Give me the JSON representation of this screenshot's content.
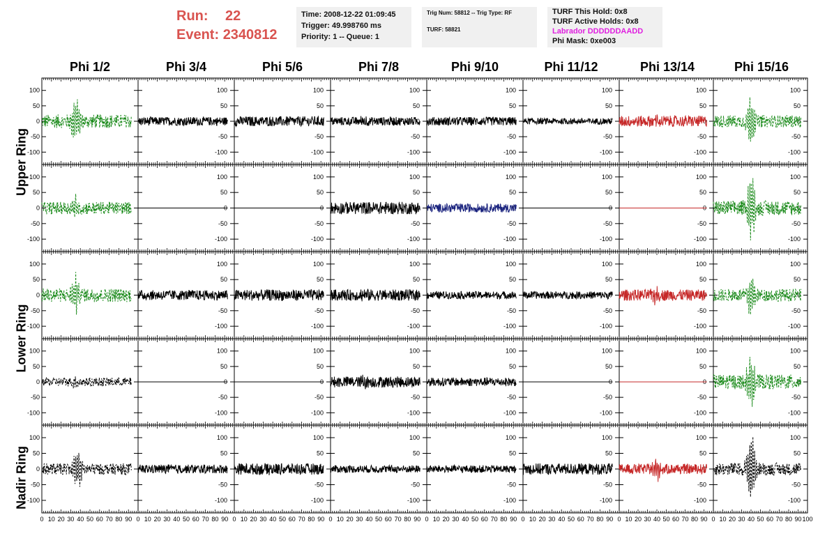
{
  "header": {
    "run_label": "Run:",
    "run_value": "22",
    "event_label": "Event:",
    "event_value": "2340812"
  },
  "info_time": {
    "time": "Time: 2008-12-22 01:09:45",
    "trigger": "Trigger: 49.998760 ms",
    "priority": "Priority: 1 -- Queue: 1"
  },
  "info_trig": {
    "trig": "Trig Num: 58812 -- Trig Type: RF",
    "turf": "TURF: 58821"
  },
  "info_turf": {
    "hold": "TURF This Hold: 0x8",
    "active": "TURF Active Holds: 0x8",
    "labrador": "Labrador DDDDDDAADD",
    "phimask": "Phi Mask: 0xe003"
  },
  "colors": {
    "header_red": "#d9534f",
    "labrador_magenta": "#e020e0",
    "trace_black": "#000000",
    "trace_green": "#1a8a1a",
    "trace_red": "#c62828",
    "trace_blue": "#1a237e"
  },
  "chart_data": {
    "type": "line",
    "columns": [
      "Phi 1/2",
      "Phi 3/4",
      "Phi 5/6",
      "Phi 7/8",
      "Phi 9/10",
      "Phi 11/12",
      "Phi 13/14",
      "Phi 15/16"
    ],
    "rows": [
      "Upper Ring",
      "Lower Ring",
      "Nadir Ring"
    ],
    "xlim": [
      0,
      100
    ],
    "ylim": [
      -140,
      140
    ],
    "x_ticks": [
      "0",
      "10",
      "20",
      "30",
      "40",
      "50",
      "60",
      "70",
      "80",
      "90",
      "100"
    ],
    "y_ticks": [
      "100",
      "50",
      "0",
      "-50",
      "-100"
    ],
    "panels": [
      [
        {
          "color": "green",
          "dash": true,
          "amp": 22,
          "burst": 70,
          "center": 35
        },
        {
          "color": "black",
          "dash": false,
          "amp": 14,
          "burst": 0,
          "center": 35
        },
        {
          "color": "black",
          "dash": false,
          "amp": 16,
          "burst": 0,
          "center": 35
        },
        {
          "color": "black",
          "dash": false,
          "amp": 14,
          "burst": 10,
          "center": 35
        },
        {
          "color": "black",
          "dash": false,
          "amp": 14,
          "burst": 0,
          "center": 35
        },
        {
          "color": "black",
          "dash": false,
          "amp": 10,
          "burst": 0,
          "center": 35
        },
        {
          "color": "red",
          "dash": false,
          "amp": 18,
          "burst": 20,
          "center": 40
        },
        {
          "color": "green",
          "dash": true,
          "amp": 20,
          "burst": 85,
          "center": 40
        }
      ],
      [
        {
          "color": "green",
          "dash": true,
          "amp": 20,
          "burst": 35,
          "center": 35
        },
        {
          "color": "black",
          "dash": false,
          "amp": 0,
          "burst": 0,
          "center": 35
        },
        {
          "color": "black",
          "dash": false,
          "amp": 0,
          "burst": 0,
          "center": 35
        },
        {
          "color": "black",
          "dash": false,
          "amp": 20,
          "burst": 0,
          "center": 35
        },
        {
          "color": "blue",
          "dash": false,
          "amp": 14,
          "burst": 0,
          "center": 35
        },
        {
          "color": "black",
          "dash": false,
          "amp": 0,
          "burst": 0,
          "center": 35
        },
        {
          "color": "red",
          "dash": false,
          "amp": 0,
          "burst": 0,
          "center": 35
        },
        {
          "color": "green",
          "dash": true,
          "amp": 24,
          "burst": 110,
          "center": 40
        }
      ],
      [
        {
          "color": "green",
          "dash": true,
          "amp": 22,
          "burst": 60,
          "center": 35
        },
        {
          "color": "black",
          "dash": false,
          "amp": 16,
          "burst": 0,
          "center": 35
        },
        {
          "color": "black",
          "dash": false,
          "amp": 18,
          "burst": 0,
          "center": 35
        },
        {
          "color": "black",
          "dash": false,
          "amp": 18,
          "burst": 10,
          "center": 35
        },
        {
          "color": "black",
          "dash": false,
          "amp": 12,
          "burst": 0,
          "center": 35
        },
        {
          "color": "black",
          "dash": false,
          "amp": 12,
          "burst": 0,
          "center": 35
        },
        {
          "color": "red",
          "dash": false,
          "amp": 18,
          "burst": 25,
          "center": 40
        },
        {
          "color": "green",
          "dash": true,
          "amp": 20,
          "burst": 70,
          "center": 40
        }
      ],
      [
        {
          "color": "black",
          "dash": true,
          "amp": 14,
          "burst": 15,
          "center": 35
        },
        {
          "color": "black",
          "dash": false,
          "amp": 0,
          "burst": 0,
          "center": 35
        },
        {
          "color": "black",
          "dash": false,
          "amp": 0,
          "burst": 0,
          "center": 35
        },
        {
          "color": "black",
          "dash": false,
          "amp": 18,
          "burst": 15,
          "center": 35
        },
        {
          "color": "black",
          "dash": false,
          "amp": 14,
          "burst": 0,
          "center": 35
        },
        {
          "color": "black",
          "dash": false,
          "amp": 0,
          "burst": 0,
          "center": 35
        },
        {
          "color": "red",
          "dash": false,
          "amp": 0,
          "burst": 0,
          "center": 35
        },
        {
          "color": "green",
          "dash": true,
          "amp": 24,
          "burst": 85,
          "center": 40
        }
      ],
      [
        {
          "color": "black",
          "dash": true,
          "amp": 18,
          "burst": 70,
          "center": 37
        },
        {
          "color": "black",
          "dash": false,
          "amp": 14,
          "burst": 0,
          "center": 35
        },
        {
          "color": "black",
          "dash": false,
          "amp": 18,
          "burst": 5,
          "center": 35
        },
        {
          "color": "black",
          "dash": false,
          "amp": 12,
          "burst": 0,
          "center": 35
        },
        {
          "color": "black",
          "dash": false,
          "amp": 12,
          "burst": 0,
          "center": 35
        },
        {
          "color": "black",
          "dash": false,
          "amp": 18,
          "burst": 0,
          "center": 35
        },
        {
          "color": "red",
          "dash": false,
          "amp": 16,
          "burst": 40,
          "center": 40
        },
        {
          "color": "black",
          "dash": true,
          "amp": 20,
          "burst": 110,
          "center": 40
        }
      ]
    ]
  }
}
